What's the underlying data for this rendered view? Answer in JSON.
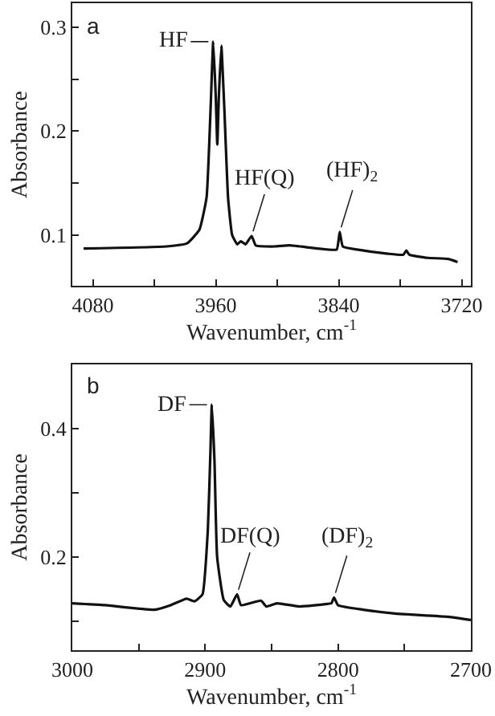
{
  "chart_data": [
    {
      "type": "line",
      "xlabel": "Wavenumber, cm$^{-1}$",
      "ylabel": "Absorbance",
      "x": [
        4089,
        4008,
        3988,
        3976,
        3969,
        3965,
        3962.5,
        3960,
        3958.5,
        3957,
        3954.6,
        3951.7,
        3948,
        3944,
        3939,
        3935.5,
        3931,
        3925,
        3921,
        3903,
        3888,
        3861,
        3842,
        3839,
        3836,
        3822,
        3792,
        3777,
        3774,
        3771,
        3753,
        3733,
        3724
      ],
      "series": [
        {
          "color": "#111111",
          "values": [
            0.087,
            0.089,
            0.092,
            0.105,
            0.136,
            0.223,
            0.286,
            0.233,
            0.187,
            0.233,
            0.282,
            0.223,
            0.136,
            0.1,
            0.091,
            0.094,
            0.091,
            0.099,
            0.09,
            0.089,
            0.09,
            0.087,
            0.086,
            0.103,
            0.089,
            0.086,
            0.082,
            0.081,
            0.085,
            0.081,
            0.078,
            0.077,
            0.074
          ]
        }
      ],
      "xlim": [
        4100,
        3711
      ],
      "ylim": [
        0.051,
        0.323
      ],
      "xticks": [
        4080,
        {
          "value": 4020,
          "label": null
        },
        3960,
        {
          "value": 3900,
          "label": null
        },
        3840,
        {
          "value": 3780,
          "label": null
        },
        3720
      ],
      "yticks": [
        0.1,
        {
          "value": 0.15,
          "label": null
        },
        0.2,
        {
          "value": 0.25,
          "label": null
        },
        0.3
      ],
      "marker": "none",
      "line_style": "solid",
      "annotations": [
        "a",
        {
          "text": "HF",
          "x": 3962.5,
          "y": 0.286
        },
        {
          "text": "HF(Q)",
          "x": 3925,
          "y": 0.099
        },
        {
          "text": "(HF)$_{2}$",
          "x": 3839,
          "y": 0.103
        }
      ]
    },
    {
      "type": "line",
      "xlabel": "Wavenumber, cm$^{-1}$",
      "ylabel": "Absorbance",
      "x": [
        3000,
        2975,
        2938,
        2926,
        2914,
        2908,
        2902,
        2898,
        2896,
        2895,
        2893,
        2891,
        2886,
        2881,
        2876,
        2873,
        2858,
        2854,
        2846,
        2829,
        2808,
        2805,
        2803,
        2800,
        2781,
        2757,
        2717,
        2700
      ],
      "series": [
        {
          "color": "#111111",
          "values": [
            0.128,
            0.125,
            0.118,
            0.125,
            0.135,
            0.131,
            0.142,
            0.242,
            0.367,
            0.437,
            0.35,
            0.2,
            0.133,
            0.123,
            0.142,
            0.125,
            0.132,
            0.123,
            0.128,
            0.123,
            0.127,
            0.128,
            0.137,
            0.125,
            0.118,
            0.112,
            0.107,
            0.102
          ]
        }
      ],
      "xlim": [
        3000,
        2700
      ],
      "ylim": [
        0.055,
        0.5
      ],
      "xticks": [
        3000,
        {
          "value": 2950,
          "label": null
        },
        2900,
        {
          "value": 2850,
          "label": null
        },
        2800,
        {
          "value": 2750,
          "label": null
        },
        2700
      ],
      "yticks": [
        {
          "value": 0.1,
          "label": null
        },
        0.2,
        {
          "value": 0.3,
          "label": null
        },
        0.4,
        {
          "value": 0.5,
          "label": null
        }
      ],
      "marker": "none",
      "line_style": "solid",
      "annotations": [
        "b",
        {
          "text": "DF",
          "x": 2895,
          "y": 0.437
        },
        {
          "text": "DF(Q)",
          "x": 2876,
          "y": 0.142
        },
        {
          "text": "(DF)$_{2}$",
          "x": 2803,
          "y": 0.137
        }
      ]
    }
  ]
}
